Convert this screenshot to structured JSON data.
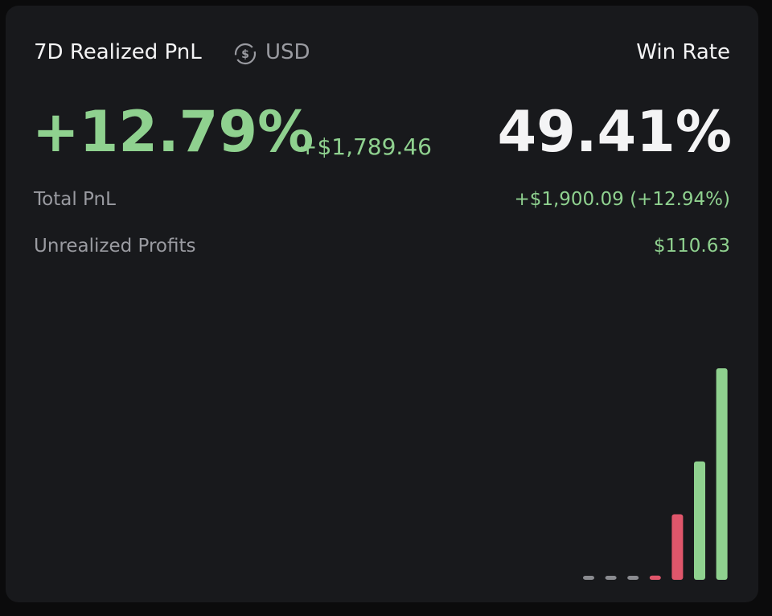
{
  "header": {
    "title": "7D Realized PnL",
    "currency": "USD",
    "win_rate_label": "Win Rate"
  },
  "realized": {
    "percent": "+12.79%",
    "amount": "+$1,789.46"
  },
  "win_rate": "49.41%",
  "rows": [
    {
      "label": "Total PnL",
      "value": "+$1,900.09 (+12.94%)"
    },
    {
      "label": "Unrealized Profits",
      "value": "$110.63"
    }
  ],
  "chart_data": {
    "type": "bar",
    "categories": [
      null,
      null,
      null,
      null,
      null,
      null,
      null
    ],
    "values": [
      0,
      0,
      0,
      2,
      31,
      56,
      100
    ],
    "colors": [
      "#8a8b90",
      "#8a8b90",
      "#8a8b90",
      "#e0566b",
      "#e0566b",
      "#8fd18f",
      "#8fd18f"
    ],
    "ylim": [
      0,
      100
    ]
  }
}
